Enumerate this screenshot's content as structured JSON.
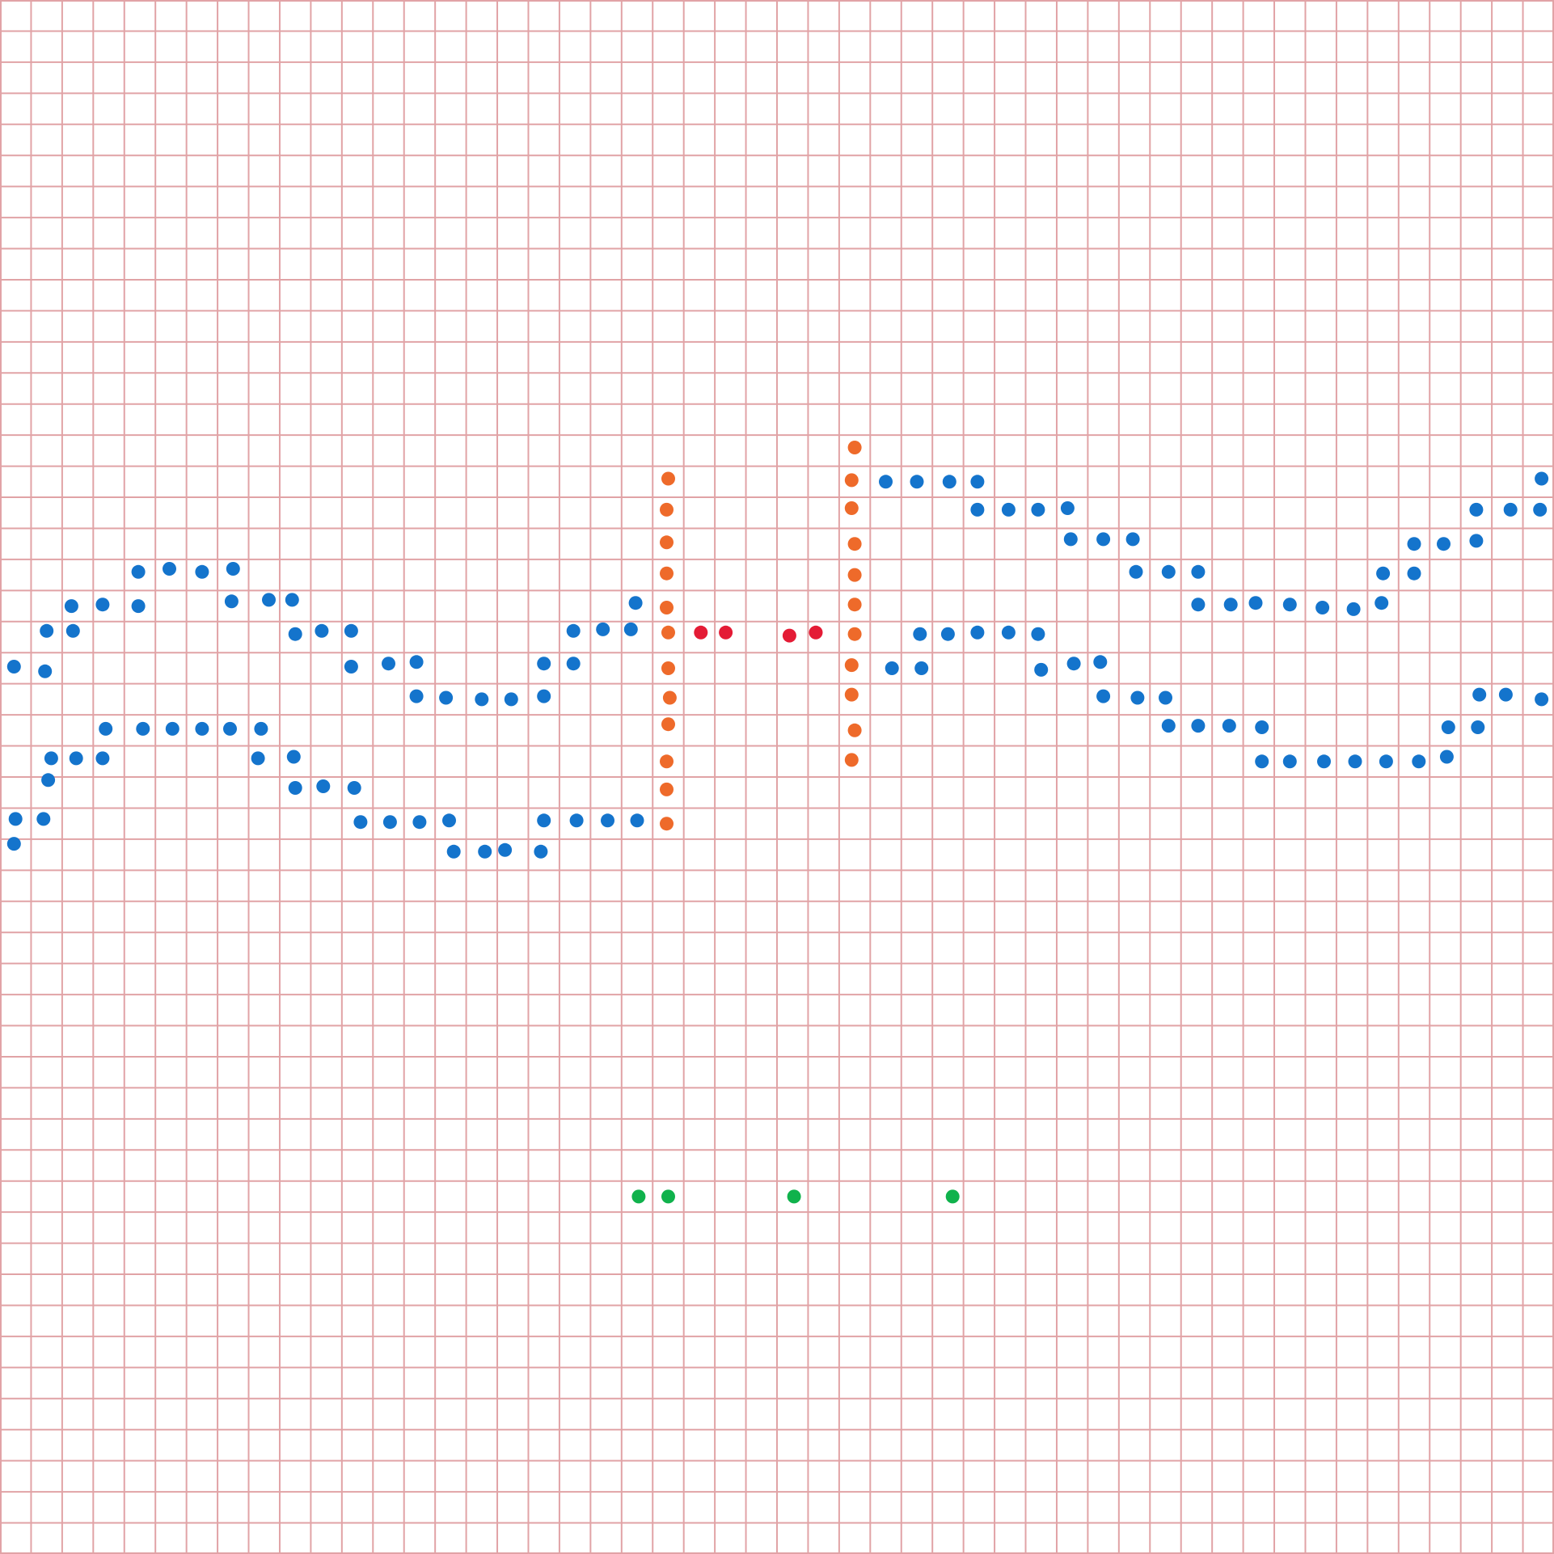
{
  "board": {
    "background_color": "#ffffff",
    "grid_line_color": "#e1a3a6",
    "columns": 50,
    "rows": 50
  },
  "dot_colors": {
    "blue": "#1474cc",
    "orange": "#ee6a2a",
    "red": "#e41b35",
    "green": "#10b24c"
  },
  "dot_groups": [
    {
      "name": "blue-left-upper-wave",
      "color": "blue",
      "points": [
        [
          0.45,
          21.45
        ],
        [
          1.45,
          21.6
        ],
        [
          1.5,
          20.3
        ],
        [
          2.35,
          20.3
        ],
        [
          2.3,
          19.5
        ],
        [
          3.3,
          19.45
        ],
        [
          4.45,
          19.5
        ],
        [
          4.45,
          18.4
        ],
        [
          5.45,
          18.3
        ],
        [
          6.5,
          18.4
        ],
        [
          7.5,
          18.3
        ],
        [
          7.45,
          19.35
        ],
        [
          8.65,
          19.3
        ],
        [
          9.4,
          19.3
        ],
        [
          9.5,
          20.4
        ],
        [
          10.35,
          20.3
        ],
        [
          11.3,
          20.3
        ],
        [
          11.3,
          21.45
        ],
        [
          12.5,
          21.35
        ],
        [
          13.4,
          21.3
        ],
        [
          13.4,
          22.4
        ],
        [
          14.35,
          22.45
        ],
        [
          15.5,
          22.5
        ],
        [
          16.45,
          22.5
        ],
        [
          17.5,
          22.4
        ],
        [
          17.5,
          21.35
        ],
        [
          18.45,
          21.35
        ],
        [
          18.45,
          20.3
        ],
        [
          19.4,
          20.25
        ],
        [
          20.3,
          20.25
        ],
        [
          20.45,
          19.4
        ]
      ]
    },
    {
      "name": "blue-left-lower-wave",
      "color": "blue",
      "points": [
        [
          0.45,
          27.15
        ],
        [
          0.5,
          26.35
        ],
        [
          1.4,
          26.35
        ],
        [
          1.55,
          25.1
        ],
        [
          1.65,
          24.4
        ],
        [
          2.45,
          24.4
        ],
        [
          3.3,
          24.4
        ],
        [
          3.4,
          23.45
        ],
        [
          4.6,
          23.45
        ],
        [
          5.55,
          23.45
        ],
        [
          6.5,
          23.45
        ],
        [
          7.4,
          23.45
        ],
        [
          8.4,
          23.45
        ],
        [
          8.3,
          24.4
        ],
        [
          9.45,
          24.35
        ],
        [
          9.5,
          25.35
        ],
        [
          10.4,
          25.3
        ],
        [
          11.4,
          25.35
        ],
        [
          11.6,
          26.45
        ],
        [
          12.55,
          26.45
        ],
        [
          13.5,
          26.45
        ],
        [
          14.45,
          26.4
        ],
        [
          14.6,
          27.4
        ],
        [
          15.6,
          27.4
        ],
        [
          16.25,
          27.35
        ],
        [
          17.4,
          27.4
        ],
        [
          17.5,
          26.4
        ],
        [
          18.55,
          26.4
        ],
        [
          19.55,
          26.4
        ],
        [
          20.5,
          26.4
        ]
      ]
    },
    {
      "name": "blue-right-upper-wave",
      "color": "blue",
      "points": [
        [
          28.5,
          15.5
        ],
        [
          29.5,
          15.5
        ],
        [
          30.55,
          15.5
        ],
        [
          31.45,
          15.5
        ],
        [
          31.45,
          16.4
        ],
        [
          32.45,
          16.4
        ],
        [
          33.4,
          16.4
        ],
        [
          34.35,
          16.35
        ],
        [
          34.45,
          17.35
        ],
        [
          35.5,
          17.35
        ],
        [
          36.45,
          17.35
        ],
        [
          36.55,
          18.4
        ],
        [
          37.6,
          18.4
        ],
        [
          38.55,
          18.4
        ],
        [
          38.55,
          19.45
        ],
        [
          39.6,
          19.45
        ],
        [
          40.4,
          19.4
        ],
        [
          41.5,
          19.45
        ],
        [
          42.55,
          19.55
        ],
        [
          43.55,
          19.6
        ],
        [
          44.45,
          19.4
        ],
        [
          44.5,
          18.45
        ],
        [
          45.5,
          18.45
        ],
        [
          45.5,
          17.5
        ],
        [
          46.45,
          17.5
        ],
        [
          47.5,
          17.4
        ],
        [
          47.5,
          16.4
        ],
        [
          48.6,
          16.4
        ],
        [
          49.55,
          16.4
        ],
        [
          49.6,
          15.4
        ]
      ]
    },
    {
      "name": "blue-right-lower-wave",
      "color": "blue",
      "points": [
        [
          28.7,
          21.5
        ],
        [
          29.65,
          21.5
        ],
        [
          29.6,
          20.4
        ],
        [
          30.5,
          20.4
        ],
        [
          31.45,
          20.35
        ],
        [
          32.45,
          20.35
        ],
        [
          33.4,
          20.4
        ],
        [
          33.5,
          21.55
        ],
        [
          34.55,
          21.35
        ],
        [
          35.4,
          21.3
        ],
        [
          35.5,
          22.4
        ],
        [
          36.6,
          22.45
        ],
        [
          37.5,
          22.45
        ],
        [
          37.6,
          23.35
        ],
        [
          38.55,
          23.35
        ],
        [
          39.55,
          23.35
        ],
        [
          40.6,
          23.4
        ],
        [
          40.6,
          24.5
        ],
        [
          41.5,
          24.5
        ],
        [
          42.6,
          24.5
        ],
        [
          43.6,
          24.5
        ],
        [
          44.6,
          24.5
        ],
        [
          45.65,
          24.5
        ],
        [
          46.55,
          24.35
        ],
        [
          46.6,
          23.4
        ],
        [
          47.55,
          23.4
        ],
        [
          47.6,
          22.35
        ],
        [
          48.45,
          22.35
        ],
        [
          49.6,
          22.5
        ]
      ]
    },
    {
      "name": "orange-left-vertical",
      "color": "orange",
      "points": [
        [
          21.5,
          15.4
        ],
        [
          21.45,
          16.4
        ],
        [
          21.45,
          17.45
        ],
        [
          21.45,
          18.45
        ],
        [
          21.45,
          19.55
        ],
        [
          21.5,
          20.35
        ],
        [
          21.5,
          21.5
        ],
        [
          21.55,
          22.45
        ],
        [
          21.5,
          23.3
        ],
        [
          21.45,
          24.5
        ],
        [
          21.45,
          25.4
        ],
        [
          21.45,
          26.5
        ]
      ]
    },
    {
      "name": "orange-right-vertical",
      "color": "orange",
      "points": [
        [
          27.5,
          14.4
        ],
        [
          27.4,
          15.45
        ],
        [
          27.4,
          16.35
        ],
        [
          27.5,
          17.5
        ],
        [
          27.5,
          18.5
        ],
        [
          27.5,
          19.45
        ],
        [
          27.5,
          20.4
        ],
        [
          27.4,
          21.4
        ],
        [
          27.4,
          22.35
        ],
        [
          27.5,
          23.5
        ],
        [
          27.4,
          24.45
        ]
      ]
    },
    {
      "name": "red-center-pairs",
      "color": "red",
      "points": [
        [
          22.55,
          20.35
        ],
        [
          23.35,
          20.35
        ],
        [
          25.4,
          20.45
        ],
        [
          26.25,
          20.35
        ]
      ]
    },
    {
      "name": "green-bottom-row",
      "color": "green",
      "points": [
        [
          20.55,
          38.5
        ],
        [
          21.5,
          38.5
        ],
        [
          25.55,
          38.5
        ],
        [
          30.65,
          38.5
        ]
      ]
    }
  ]
}
